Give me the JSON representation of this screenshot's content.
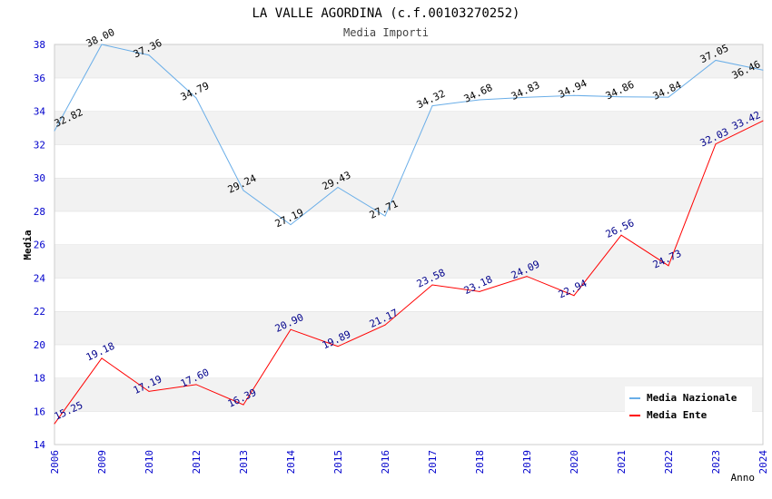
{
  "chart_data": {
    "type": "line",
    "title": "LA VALLE AGORDINA (c.f.00103270252)",
    "subtitle": "Media Importi",
    "xlabel": "Anno",
    "ylabel": "Media",
    "ylim": [
      14,
      38
    ],
    "yticks": [
      "14",
      "16",
      "18",
      "20",
      "22",
      "24",
      "26",
      "28",
      "30",
      "32",
      "34",
      "36",
      "38"
    ],
    "categories": [
      "2006",
      "2009",
      "2010",
      "2012",
      "2013",
      "2014",
      "2015",
      "2016",
      "2017",
      "2018",
      "2019",
      "2020",
      "2021",
      "2022",
      "2023",
      "2024"
    ],
    "legend_position": "top-right",
    "series": [
      {
        "name": "Media Nazionale",
        "color": "#6aaee8",
        "label_color": "#000000",
        "values": [
          32.82,
          38.0,
          37.36,
          34.79,
          29.24,
          27.19,
          29.43,
          27.71,
          34.32,
          34.68,
          34.83,
          34.94,
          34.86,
          34.84,
          37.05,
          36.46
        ]
      },
      {
        "name": "Media Ente",
        "color": "#ff0000",
        "label_color": "#00008b",
        "values": [
          15.25,
          19.18,
          17.19,
          17.6,
          16.39,
          20.9,
          19.89,
          21.17,
          23.58,
          23.18,
          24.09,
          22.94,
          26.56,
          24.73,
          32.03,
          33.42
        ]
      }
    ]
  }
}
